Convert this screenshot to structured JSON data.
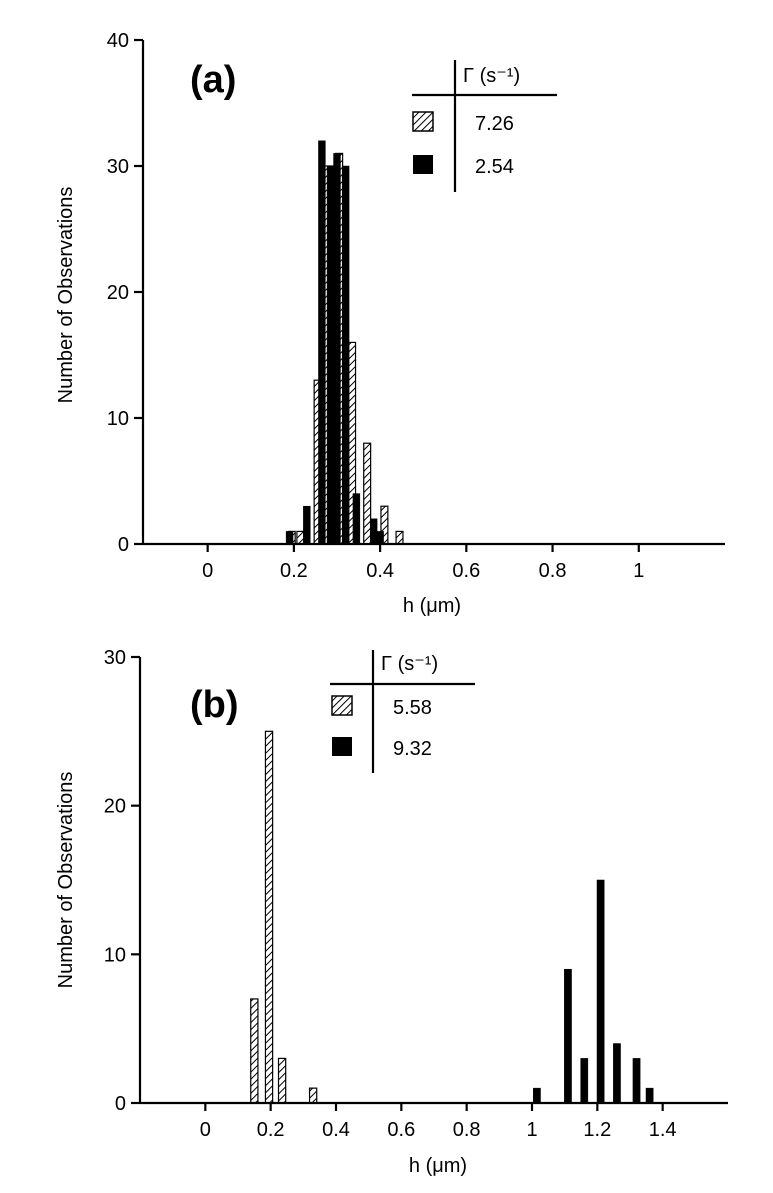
{
  "chart_data": [
    {
      "type": "bar",
      "panel_label": "(a)",
      "xlabel": "h (μm)",
      "ylabel": "Number of Observations",
      "xlim": [
        -0.15,
        1.2
      ],
      "ylim": [
        0,
        40
      ],
      "xticks": [
        {
          "v": 0,
          "t": "0"
        },
        {
          "v": 0.2,
          "t": "0.2"
        },
        {
          "v": 0.4,
          "t": "0.4"
        },
        {
          "v": 0.6,
          "t": "0.6"
        },
        {
          "v": 0.8,
          "t": "0.8"
        },
        {
          "v": 1,
          "t": "1"
        }
      ],
      "yticks": [
        {
          "v": 0,
          "t": "0"
        },
        {
          "v": 10,
          "t": "10"
        },
        {
          "v": 20,
          "t": "20"
        },
        {
          "v": 30,
          "t": "30"
        },
        {
          "v": 40,
          "t": "40"
        }
      ],
      "legend": {
        "header": "Γ (s⁻¹)",
        "position": "top-right"
      },
      "bar_width": 0.016,
      "series": [
        {
          "name": "7.26",
          "pattern": "hatched",
          "x": [
            0.195,
            0.215,
            0.255,
            0.275,
            0.29,
            0.305,
            0.335,
            0.37,
            0.41,
            0.445
          ],
          "values": [
            1,
            1,
            13,
            30,
            30,
            31,
            16,
            8,
            3,
            1
          ]
        },
        {
          "name": "2.54",
          "pattern": "solid",
          "x": [
            0.19,
            0.23,
            0.265,
            0.285,
            0.3,
            0.32,
            0.345,
            0.385,
            0.4
          ],
          "values": [
            1,
            3,
            32,
            30,
            31,
            30,
            4,
            2,
            1
          ]
        }
      ]
    },
    {
      "type": "bar",
      "panel_label": "(b)",
      "xlabel": "h (μm)",
      "ylabel": "Number of Observations",
      "xlim": [
        -0.2,
        1.6
      ],
      "ylim": [
        0,
        30
      ],
      "xticks": [
        {
          "v": 0,
          "t": "0"
        },
        {
          "v": 0.2,
          "t": "0.2"
        },
        {
          "v": 0.4,
          "t": "0.4"
        },
        {
          "v": 0.6,
          "t": "0.6"
        },
        {
          "v": 0.8,
          "t": "0.8"
        },
        {
          "v": 1,
          "t": "1"
        },
        {
          "v": 1.2,
          "t": "1.2"
        },
        {
          "v": 1.4,
          "t": "1.4"
        }
      ],
      "yticks": [
        {
          "v": 0,
          "t": "0"
        },
        {
          "v": 10,
          "t": "10"
        },
        {
          "v": 20,
          "t": "20"
        },
        {
          "v": 30,
          "t": "30"
        }
      ],
      "legend": {
        "header": "Γ (s⁻¹)",
        "position": "top-center"
      },
      "bar_width": 0.022,
      "series": [
        {
          "name": "5.58",
          "pattern": "hatched",
          "x": [
            0.15,
            0.195,
            0.235,
            0.33
          ],
          "values": [
            7,
            25,
            3,
            1
          ]
        },
        {
          "name": "9.32",
          "pattern": "solid",
          "x": [
            1.015,
            1.11,
            1.16,
            1.21,
            1.26,
            1.32,
            1.36
          ],
          "values": [
            1,
            9,
            3,
            15,
            4,
            3,
            1
          ]
        }
      ]
    }
  ]
}
